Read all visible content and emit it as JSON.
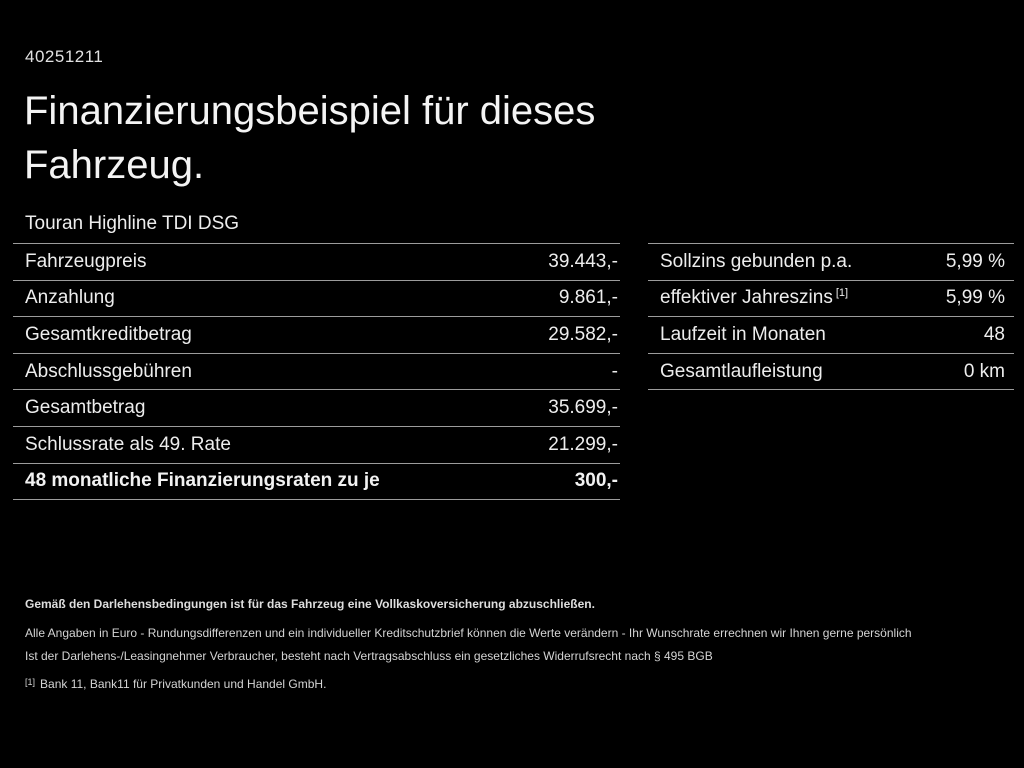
{
  "page": {
    "id_number": "40251211",
    "title": "Finanzierungsbeispiel für dieses Fahrzeug.",
    "vehicle": "Touran Highline TDI DSG"
  },
  "left_table": {
    "rows": [
      {
        "label": "Fahrzeugpreis",
        "value": "39.443,-"
      },
      {
        "label": "Anzahlung",
        "value": "9.861,-"
      },
      {
        "label": "Gesamtkreditbetrag",
        "value": "29.582,-"
      },
      {
        "label": "Abschlussgebühren",
        "value": "-"
      },
      {
        "label": "Gesamtbetrag",
        "value": "35.699,-"
      },
      {
        "label": "Schlussrate als 49. Rate",
        "value": "21.299,-"
      },
      {
        "label": "48 monatliche Finanzierungsraten zu je",
        "value": "300,-"
      }
    ]
  },
  "right_table": {
    "rows": [
      {
        "label": "Sollzins gebunden p.a.",
        "sup": "",
        "value": "5,99 %"
      },
      {
        "label": "effektiver Jahreszins",
        "sup": "[1]",
        "value": "5,99 %"
      },
      {
        "label": "Laufzeit in Monaten",
        "sup": "",
        "value": "48"
      },
      {
        "label": "Gesamtlaufleistung",
        "sup": "",
        "value": "0 km"
      }
    ]
  },
  "footer": {
    "line1": "Gemäß den Darlehensbedingungen ist für das Fahrzeug eine Vollkaskoversicherung abzuschließen.",
    "line2": "Alle Angaben in Euro - Rundungsdifferenzen und ein individueller Kreditschutzbrief können die Werte verändern - Ihr Wunschrate errechnen wir Ihnen gerne persönlich",
    "line3": "Ist der Darlehens-/Leasingnehmer Verbraucher, besteht nach Vertragsabschluss ein gesetzliches Widerrufsrecht nach § 495 BGB",
    "footnote_marker": "[1]",
    "footnote_text": "Bank 11, Bank11 für Privatkunden und Handel GmbH."
  },
  "colors": {
    "background": "#000000",
    "text": "#ededed",
    "divider": "#9c9c9c"
  }
}
